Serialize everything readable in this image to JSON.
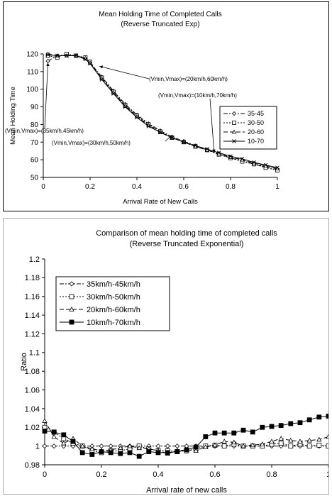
{
  "chart_data": [
    {
      "type": "line",
      "title": "Mean Holding Time of Completed Calls",
      "subtitle": "(Reverse Truncated Exp)",
      "xlabel": "Arrival Rate of New Calls",
      "ylabel": "Mean Holding Time",
      "xlim": [
        0,
        1
      ],
      "ylim": [
        50,
        120
      ],
      "xticks": [
        0,
        0.2,
        0.4,
        0.6,
        0.8,
        1
      ],
      "xtick_labels": [
        "0",
        "0.2",
        "0.4",
        "0.6",
        "0.8",
        "1"
      ],
      "yticks": [
        50,
        60,
        70,
        80,
        90,
        100,
        110,
        120
      ],
      "ytick_labels": [
        "50",
        "60",
        "70",
        "80",
        "90",
        "100",
        "110",
        "120"
      ],
      "grid": false,
      "legend_position": "right",
      "series": [
        {
          "name": "35-45",
          "marker": "diamond",
          "dash": "6,2,2,2",
          "x": [
            0.02,
            0.06,
            0.1,
            0.14,
            0.18,
            0.2,
            0.25,
            0.3,
            0.35,
            0.4,
            0.45,
            0.5,
            0.55,
            0.6,
            0.65,
            0.7,
            0.75,
            0.8,
            0.85,
            0.9,
            0.95,
            1.0
          ],
          "y": [
            116,
            119,
            119.5,
            119,
            117.5,
            115,
            107,
            99,
            91.5,
            85.5,
            80.5,
            76.5,
            73,
            70.5,
            68,
            65.5,
            63.5,
            61,
            59.5,
            57.5,
            56,
            54.5
          ]
        },
        {
          "name": "30-50",
          "marker": "square",
          "dash": "2,2",
          "x": [
            0.02,
            0.06,
            0.1,
            0.14,
            0.18,
            0.2,
            0.25,
            0.3,
            0.35,
            0.4,
            0.45,
            0.5,
            0.55,
            0.6,
            0.65,
            0.7,
            0.75,
            0.8,
            0.85,
            0.9,
            0.95,
            1.0
          ],
          "y": [
            119,
            118,
            120,
            119,
            118,
            115.5,
            106.5,
            98.5,
            91,
            85,
            80,
            76,
            72.5,
            70,
            67.5,
            65.5,
            63,
            61,
            59,
            57.5,
            55.5,
            54
          ]
        },
        {
          "name": "20-60",
          "marker": "triangle",
          "dash": "6,3",
          "x": [
            0.02,
            0.06,
            0.1,
            0.14,
            0.18,
            0.2,
            0.25,
            0.3,
            0.35,
            0.4,
            0.45,
            0.5,
            0.55,
            0.6,
            0.65,
            0.7,
            0.75,
            0.8,
            0.85,
            0.9,
            0.95,
            1.0
          ],
          "y": [
            120,
            119,
            119,
            119,
            117.5,
            115,
            106,
            98,
            90.5,
            84.5,
            79.5,
            75.5,
            72.5,
            70,
            67.5,
            65.5,
            63.5,
            61.5,
            60,
            58,
            56.5,
            55
          ]
        },
        {
          "name": "10-70",
          "marker": "x",
          "dash": "",
          "x": [
            0.02,
            0.06,
            0.1,
            0.14,
            0.18,
            0.2,
            0.25,
            0.3,
            0.35,
            0.4,
            0.45,
            0.5,
            0.55,
            0.6,
            0.65,
            0.7,
            0.75,
            0.8,
            0.85,
            0.9,
            0.95,
            1.0
          ],
          "y": [
            119.5,
            119,
            119,
            119,
            117,
            114.5,
            105.5,
            97.5,
            90,
            84,
            79,
            75.5,
            72.5,
            70,
            68,
            66,
            64,
            62,
            60.5,
            58.5,
            57,
            55.5
          ]
        }
      ],
      "annotations": [
        {
          "text": "(Vmin,Vmax)=(20km/h,60km/h)",
          "x": 0.24,
          "y": 113
        },
        {
          "text": "(Vmin,Vmax)=(10km/h,70km/h)",
          "x": 0.73,
          "y": 64
        },
        {
          "text": "(Vmin,Vmax)=(35km/h,45km/h)",
          "x": 0.02,
          "y": 115
        },
        {
          "text": "(Vmin,Vmax)=(30km/h,50km/h)",
          "x": 0.55,
          "y": 74
        }
      ]
    },
    {
      "type": "line",
      "title": "Comparison of mean holding time of completed calls",
      "subtitle": "(Reverse Truncated Exponential)",
      "xlabel": "Arrival rate of new calls",
      "ylabel": "Ratio",
      "xlim": [
        0,
        1
      ],
      "ylim": [
        0.98,
        1.2
      ],
      "xticks": [
        0,
        0.2,
        0.4,
        0.6,
        0.8,
        1
      ],
      "xtick_labels": [
        "0",
        "0.2",
        "0.4",
        "0.6",
        "0.8",
        "1"
      ],
      "yticks": [
        0.98,
        1,
        1.02,
        1.04,
        1.06,
        1.08,
        1.1,
        1.12,
        1.14,
        1.16,
        1.18,
        1.2
      ],
      "ytick_labels": [
        "0.98",
        "1",
        "1.02",
        "1.04",
        "1.06",
        "1.08",
        "1.1",
        "1.12",
        "1.14",
        "1.16",
        "1.18",
        "1.2"
      ],
      "grid": false,
      "legend_position": "top-left",
      "series": [
        {
          "name": "35km/h-45km/h",
          "marker": "diamond",
          "dash": "6,2,2,2",
          "filled": false,
          "x": [
            0,
            0.033,
            0.067,
            0.1,
            0.133,
            0.167,
            0.2,
            0.233,
            0.267,
            0.3,
            0.333,
            0.367,
            0.4,
            0.433,
            0.467,
            0.5,
            0.533,
            0.567,
            0.6,
            0.633,
            0.667,
            0.7,
            0.733,
            0.767,
            0.8,
            0.833,
            0.867,
            0.9,
            0.933,
            0.967,
            1.0
          ],
          "y": [
            1.0,
            1.0,
            1.0,
            1.0,
            1.0,
            1.0,
            1.0,
            1.0,
            1.0,
            1.0,
            1.0,
            1.0,
            1.0,
            1.0,
            1.0,
            1.0,
            1.0,
            1.0,
            1.0,
            1.0,
            1.0,
            1.0,
            1.0,
            1.0,
            1.0,
            1.0,
            1.0,
            1.0,
            1.0,
            1.0,
            1.0
          ]
        },
        {
          "name": "30km/h-50km/h",
          "marker": "square",
          "dash": "2,2",
          "filled": false,
          "x": [
            0,
            0.033,
            0.067,
            0.1,
            0.133,
            0.167,
            0.2,
            0.233,
            0.267,
            0.3,
            0.333,
            0.367,
            0.4,
            0.433,
            0.467,
            0.5,
            0.533,
            0.567,
            0.6,
            0.633,
            0.667,
            0.7,
            0.733,
            0.767,
            0.8,
            0.833,
            0.867,
            0.9,
            0.933,
            0.967,
            1.0
          ],
          "y": [
            1.02,
            1.015,
            1.008,
            1.003,
            1.0,
            0.995,
            0.993,
            0.995,
            0.995,
            0.997,
            1.0,
            0.997,
            0.995,
            0.995,
            0.994,
            0.995,
            0.997,
            1.0,
            1.001,
            1.0,
            1.002,
            1.0,
            1.0,
            1.0,
            1.002,
            1.003,
            1.0,
            1.002,
            1.0,
            1.001,
            1.0
          ]
        },
        {
          "name": "20km/h-60km/h",
          "marker": "triangle",
          "dash": "6,3",
          "filled": false,
          "x": [
            0,
            0.033,
            0.067,
            0.1,
            0.133,
            0.167,
            0.2,
            0.233,
            0.267,
            0.3,
            0.333,
            0.367,
            0.4,
            0.433,
            0.467,
            0.5,
            0.533,
            0.567,
            0.6,
            0.633,
            0.667,
            0.7,
            0.733,
            0.767,
            0.8,
            0.833,
            0.867,
            0.9,
            0.933,
            0.967,
            1.0
          ],
          "y": [
            1.027,
            1.01,
            1.003,
            1.008,
            1.0,
            0.997,
            0.995,
            0.996,
            0.998,
            1.0,
            0.998,
            0.997,
            0.995,
            0.992,
            0.995,
            0.996,
            0.995,
            0.999,
            1.001,
            1.005,
            1.004,
            1.0,
            1.001,
            1.002,
            1.005,
            1.008,
            1.006,
            1.005,
            1.006,
            1.007,
            1.01
          ]
        },
        {
          "name": "10km/h-70km/h",
          "marker": "square",
          "dash": "",
          "filled": true,
          "x": [
            0,
            0.033,
            0.067,
            0.1,
            0.133,
            0.167,
            0.2,
            0.233,
            0.267,
            0.3,
            0.333,
            0.367,
            0.4,
            0.433,
            0.467,
            0.5,
            0.533,
            0.567,
            0.6,
            0.633,
            0.667,
            0.7,
            0.733,
            0.767,
            0.8,
            0.833,
            0.867,
            0.9,
            0.933,
            0.967,
            1.0
          ],
          "y": [
            1.016,
            1.015,
            1.012,
            1.005,
            0.993,
            0.991,
            0.994,
            0.993,
            0.992,
            0.993,
            0.989,
            0.994,
            0.993,
            0.993,
            0.994,
            0.996,
            0.999,
            1.01,
            1.014,
            1.014,
            1.014,
            1.017,
            1.015,
            1.02,
            1.021,
            1.022,
            1.024,
            1.025,
            1.028,
            1.031,
            1.032
          ]
        }
      ]
    }
  ]
}
